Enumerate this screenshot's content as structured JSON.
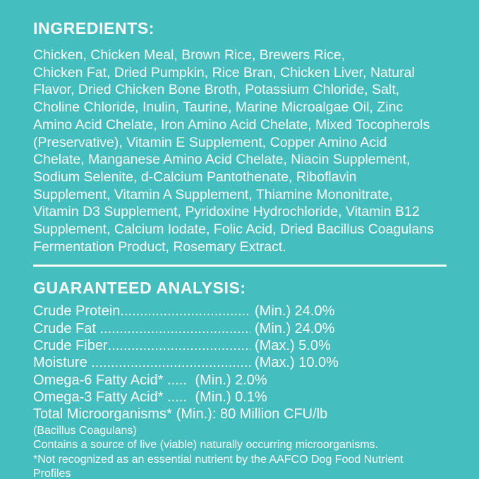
{
  "colors": {
    "background": "#44BEBE",
    "text": "#FFFFFF"
  },
  "ingredients": {
    "heading": "INGREDIENTS:",
    "lines": [
      "Chicken, Chicken Meal, Brown Rice, Brewers Rice,",
      "Chicken Fat, Dried Pumpkin, Rice Bran, Chicken Liver, Natural",
      "Flavor, Dried Chicken Bone Broth, Potassium Chloride, Salt,",
      "Choline Chloride, Inulin, Taurine, Marine Microalgae Oil, Zinc",
      "Amino Acid Chelate, Iron Amino Acid Chelate, Mixed Tocopherols",
      "(Preservative), Vitamin E Supplement, Copper Amino Acid",
      "Chelate, Manganese Amino Acid Chelate, Niacin Supplement,",
      "Sodium Selenite, d-Calcium Pantothenate, Riboflavin",
      "Supplement, Vitamin A Supplement, Thiamine Mononitrate,",
      "Vitamin D3 Supplement, Pyridoxine Hydrochloride, Vitamin B12",
      "Supplement, Calcium Iodate, Folic Acid, Dried Bacillus Coagulans",
      "Fermentation Product, Rosemary Extract."
    ]
  },
  "analysis": {
    "heading": "GUARANTEED ANALYSIS:",
    "leader_char": ".",
    "rows": [
      {
        "label": "Crude Protein",
        "fill": true,
        "value": "(Min.) 24.0%"
      },
      {
        "label": "Crude Fat ",
        "fill": true,
        "value": "(Min.) 24.0%"
      },
      {
        "label": "Crude Fiber",
        "fill": true,
        "value": "(Max.) 5.0%"
      },
      {
        "label": "Moisture ",
        "fill": true,
        "value": "(Max.) 10.0%"
      },
      {
        "label": "Omega-6 Fatty Acid*",
        "dots": " ..... ",
        "value": "(Min.) 2.0%"
      },
      {
        "label": "Omega-3 Fatty Acid*",
        "dots": " ..... ",
        "value": "(Min.) 0.1%"
      },
      {
        "label": "Total Microorganisms*",
        "value": "(Min.): 80 Million CFU/lb"
      }
    ],
    "notes": [
      "(Bacillus Coagulans)",
      "Contains a source of live (viable) naturally occurring microorganisms.",
      "*Not recognized as an essential nutrient by the AAFCO Dog Food Nutrient",
      "Profiles"
    ]
  }
}
